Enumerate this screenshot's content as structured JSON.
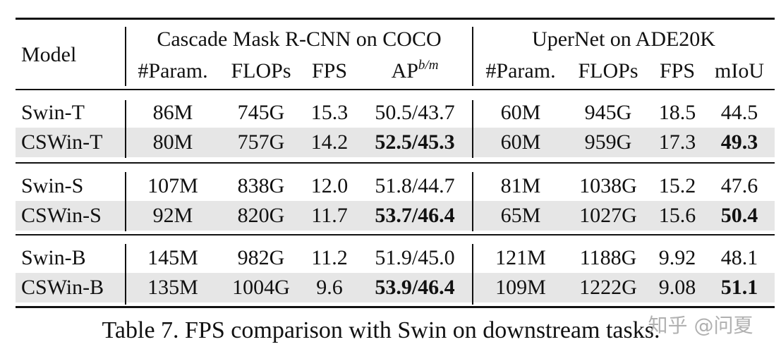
{
  "table": {
    "header": {
      "model": "Model",
      "groups": [
        "Cascade Mask R-CNN on COCO",
        "UperNet on ADE20K"
      ],
      "columns": [
        "#Param.",
        "FLOPs",
        "FPS",
        {
          "text": "AP",
          "sup": "b/m"
        },
        "#Param.",
        "FLOPs",
        "FPS",
        "mIoU"
      ]
    },
    "sections": [
      [
        {
          "model": "Swin-T",
          "cells": [
            "86M",
            "745G",
            "15.3",
            "50.5/43.7",
            "60M",
            "945G",
            "18.5",
            "44.5"
          ],
          "shaded": false,
          "bold": []
        },
        {
          "model": "CSWin-T",
          "cells": [
            "80M",
            "757G",
            "14.2",
            "52.5/45.3",
            "60M",
            "959G",
            "17.3",
            "49.3"
          ],
          "shaded": true,
          "bold": [
            3,
            7
          ]
        }
      ],
      [
        {
          "model": "Swin-S",
          "cells": [
            "107M",
            "838G",
            "12.0",
            "51.8/44.7",
            "81M",
            "1038G",
            "15.2",
            "47.6"
          ],
          "shaded": false,
          "bold": []
        },
        {
          "model": "CSWin-S",
          "cells": [
            "92M",
            "820G",
            "11.7",
            "53.7/46.4",
            "65M",
            "1027G",
            "15.6",
            "50.4"
          ],
          "shaded": true,
          "bold": [
            3,
            7
          ]
        }
      ],
      [
        {
          "model": "Swin-B",
          "cells": [
            "145M",
            "982G",
            "11.2",
            "51.9/45.0",
            "121M",
            "1188G",
            "9.92",
            "48.1"
          ],
          "shaded": false,
          "bold": []
        },
        {
          "model": "CSWin-B",
          "cells": [
            "135M",
            "1004G",
            "9.6",
            "53.9/46.4",
            "109M",
            "1222G",
            "9.08",
            "51.1"
          ],
          "shaded": true,
          "bold": [
            3,
            7
          ]
        }
      ]
    ]
  },
  "caption": "Table 7. FPS comparison with Swin on downstream tasks.",
  "watermark": "知乎 @问夏"
}
